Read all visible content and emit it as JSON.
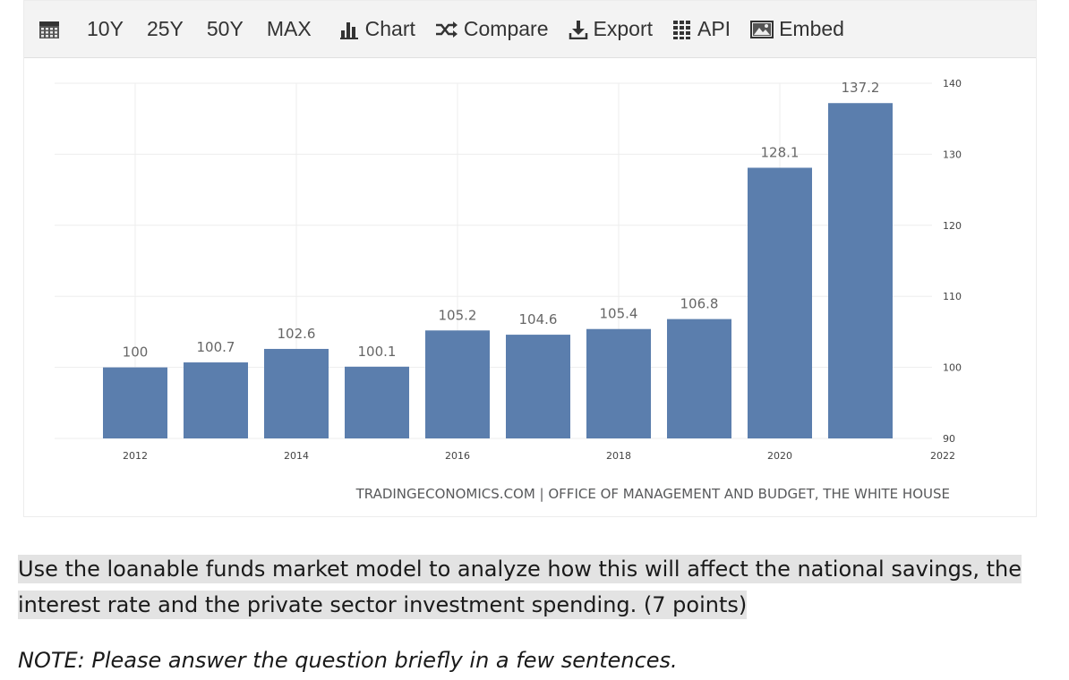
{
  "toolbar": {
    "calendar_icon": "calendar-icon",
    "periods": [
      "10Y",
      "25Y",
      "50Y",
      "MAX"
    ],
    "actions": [
      {
        "label": "Chart",
        "icon": "bar-chart-icon"
      },
      {
        "label": "Compare",
        "icon": "shuffle-icon"
      },
      {
        "label": "Export",
        "icon": "download-icon"
      },
      {
        "label": "API",
        "icon": "grid-icon"
      },
      {
        "label": "Embed",
        "icon": "image-icon"
      }
    ]
  },
  "chart_data": {
    "type": "bar",
    "categories": [
      "2012",
      "2013",
      "2014",
      "2015",
      "2016",
      "2017",
      "2018",
      "2019",
      "2020",
      "2021"
    ],
    "values": [
      100,
      100.7,
      102.6,
      100.1,
      105.2,
      104.6,
      105.4,
      106.8,
      128.1,
      137.2
    ],
    "value_labels": [
      "100",
      "100.7",
      "102.6",
      "100.1",
      "105.2",
      "104.6",
      "105.4",
      "106.8",
      "128.1",
      "137.2"
    ],
    "x_tick_labels": [
      "2012",
      "2014",
      "2016",
      "2018",
      "2020",
      "2022"
    ],
    "y_ticks": [
      "90",
      "100",
      "110",
      "120",
      "130",
      "140"
    ],
    "ylim": [
      90,
      140
    ],
    "y_axis_side": "right",
    "grid": true,
    "bar_color": "#5b7ead",
    "source": "TRADINGECONOMICS.COM | OFFICE OF MANAGEMENT AND BUDGET, THE WHITE HOUSE"
  },
  "question": {
    "text": "Use the loanable funds market model to analyze how this will affect the national savings, the interest rate and the private sector investment spending. (7 points)",
    "note": "NOTE: Please answer the question briefly in a few sentences."
  }
}
